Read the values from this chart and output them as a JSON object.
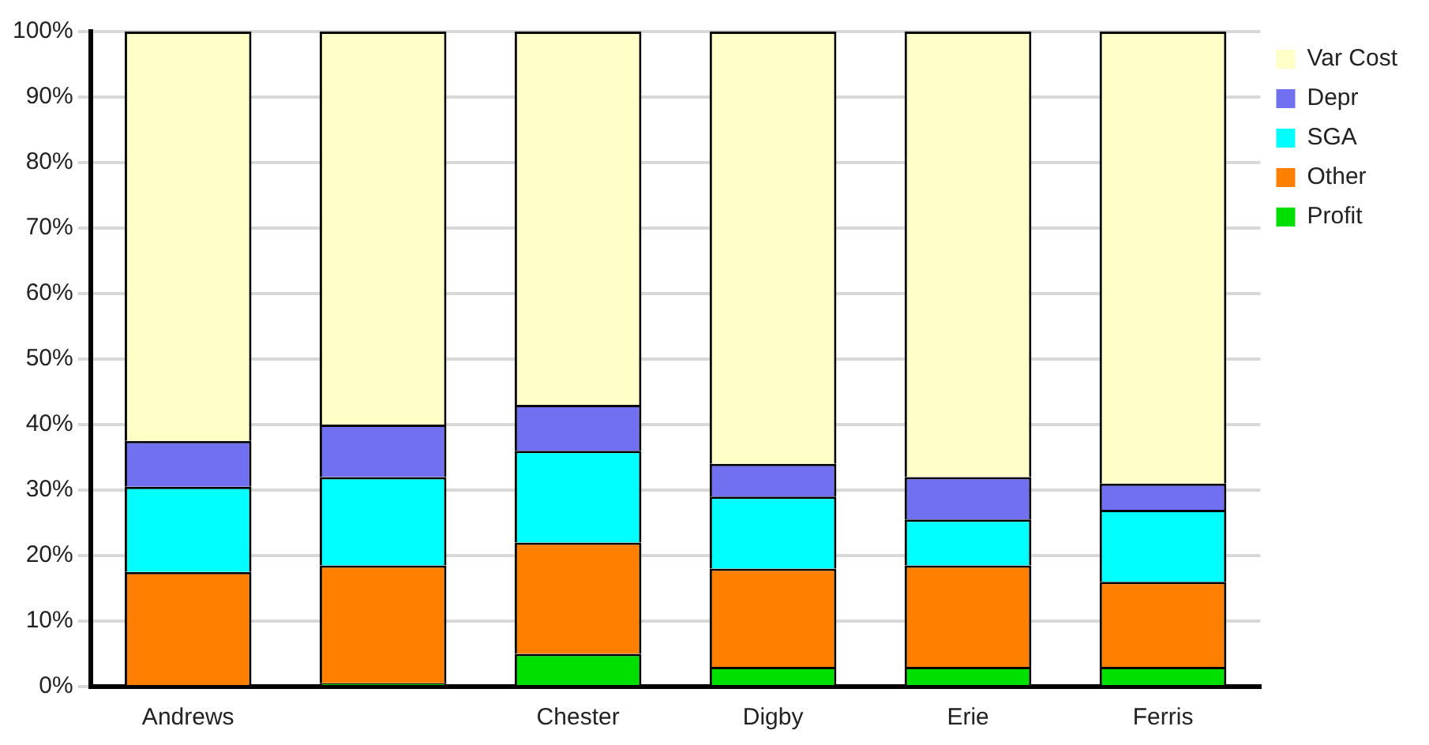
{
  "chart_data": {
    "type": "bar",
    "stacked": true,
    "categories": [
      "Andrews",
      null,
      "Chester",
      "Digby",
      "Erie",
      "Ferris"
    ],
    "series": [
      {
        "name": "Profit",
        "color": "#00e000",
        "values": [
          0,
          0.5,
          5,
          3,
          3,
          3
        ]
      },
      {
        "name": "Other",
        "color": "#ff8000",
        "values": [
          17.5,
          18,
          17,
          15,
          15.5,
          13
        ]
      },
      {
        "name": "SGA",
        "color": "#00ffff",
        "values": [
          13,
          13.5,
          14,
          11,
          7,
          11
        ]
      },
      {
        "name": "Depr",
        "color": "#7070f0",
        "values": [
          7,
          8,
          7,
          5,
          6.5,
          4
        ]
      },
      {
        "name": "Var Cost",
        "color": "#ffffc8",
        "values": [
          62.5,
          60,
          57,
          66,
          68,
          69
        ]
      }
    ],
    "ylim": [
      0,
      100
    ],
    "yticks": [
      {
        "value": 0,
        "label": "0%"
      },
      {
        "value": 10,
        "label": "10%"
      },
      {
        "value": 20,
        "label": "20%"
      },
      {
        "value": 30,
        "label": "30%"
      },
      {
        "value": 40,
        "label": "40%"
      },
      {
        "value": 50,
        "label": "50%"
      },
      {
        "value": 60,
        "label": "60%"
      },
      {
        "value": 70,
        "label": "70%"
      },
      {
        "value": 80,
        "label": "80%"
      },
      {
        "value": 90,
        "label": "90%"
      },
      {
        "value": 100,
        "label": "100%"
      }
    ],
    "grid": "y",
    "legend": "right"
  }
}
